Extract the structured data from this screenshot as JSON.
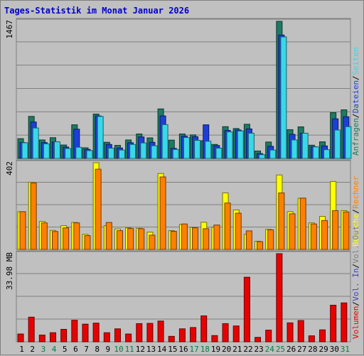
{
  "chart_data": {
    "type": "bar",
    "title": "Tages-Statistik im Monat Januar 2026",
    "categories": [
      "1",
      "2",
      "3",
      "4",
      "5",
      "6",
      "7",
      "8",
      "9",
      "10",
      "11",
      "12",
      "13",
      "14",
      "15",
      "16",
      "17",
      "18",
      "19",
      "20",
      "21",
      "22",
      "23",
      "24",
      "25",
      "26",
      "27",
      "28",
      "29",
      "30",
      "31"
    ],
    "weekend_label_color": "#008040",
    "weekend_days": [
      "3",
      "4",
      "10",
      "11",
      "17",
      "18",
      "24",
      "25",
      "31"
    ],
    "panels": [
      {
        "name": "requests",
        "axis_max_label": "1467",
        "ylim": [
          0,
          1467
        ],
        "series": [
          {
            "name": "Anfragen",
            "color": "#1e7a62",
            "values": [
              212,
              450,
              198,
              222,
              144,
              360,
              114,
              475,
              173,
              140,
              198,
              262,
              220,
              530,
              196,
              262,
              252,
              190,
              150,
              340,
              320,
              366,
              80,
              176,
              1467,
              308,
              338,
              142,
              178,
              490,
              520
            ]
          },
          {
            "name": "Dateien",
            "color": "#1d3fd8",
            "values": [
              170,
              390,
              170,
              176,
              122,
              313,
              97,
              455,
              150,
              112,
              168,
              230,
              173,
              455,
              108,
              238,
              232,
              360,
              138,
              300,
              304,
              316,
              52,
              130,
              1320,
              258,
              270,
              126,
              134,
              424,
              446
            ]
          },
          {
            "name": "Seiten",
            "color": "#38d8ea",
            "values": [
              168,
              326,
              156,
              178,
              106,
              120,
              84,
              450,
              110,
              90,
              150,
              166,
              136,
              362,
              96,
              224,
              194,
              184,
              110,
              284,
              294,
              270,
              40,
              90,
              1300,
              198,
              270,
              124,
              94,
              304,
              340
            ]
          }
        ]
      },
      {
        "name": "visits",
        "axis_max_label": "402",
        "ylim": [
          0,
          402
        ],
        "series": [
          {
            "name": "Besuche",
            "color": "#ffff00",
            "values": [
              175,
              312,
              130,
              88,
              110,
              125,
              70,
              402,
              110,
              95,
              100,
              98,
              80,
              352,
              87,
              116,
              102,
              126,
              103,
              262,
              183,
              70,
              38,
              93,
              345,
              175,
              237,
              123,
              153,
              315,
              180
            ]
          },
          {
            "name": "Rechner",
            "color": "#ff8000",
            "values": [
              175,
              308,
              123,
              83,
              100,
              123,
              64,
              372,
              125,
              87,
              97,
              96,
              66,
              336,
              84,
              118,
              100,
              96,
              113,
              215,
              168,
              86,
              36,
              91,
              262,
              165,
              238,
              118,
              134,
              180,
              174
            ]
          }
        ]
      },
      {
        "name": "traffic",
        "axis_max_label": "33.98 MB",
        "ylim": [
          0,
          33.98
        ],
        "series": [
          {
            "name": "Volumen",
            "color": "#e80000",
            "values": [
              3.0,
              9.5,
              2.6,
              3.5,
              4.8,
              8.3,
              6.8,
              7.2,
              3.5,
              5.0,
              3.0,
              7.0,
              7.1,
              8.0,
              2.1,
              5.0,
              5.5,
              10.0,
              2.4,
              7.0,
              6.1,
              24.9,
              1.7,
              4.5,
              33.98,
              7.3,
              8.2,
              2.3,
              4.6,
              14.1,
              15.0
            ]
          },
          {
            "name": "Vol. In",
            "color": "#4040c0",
            "values": []
          },
          {
            "name": "Vol. Out",
            "color": "#808080",
            "values": []
          }
        ]
      }
    ],
    "legend_position": "right-vertical",
    "grid": "horizontal"
  }
}
